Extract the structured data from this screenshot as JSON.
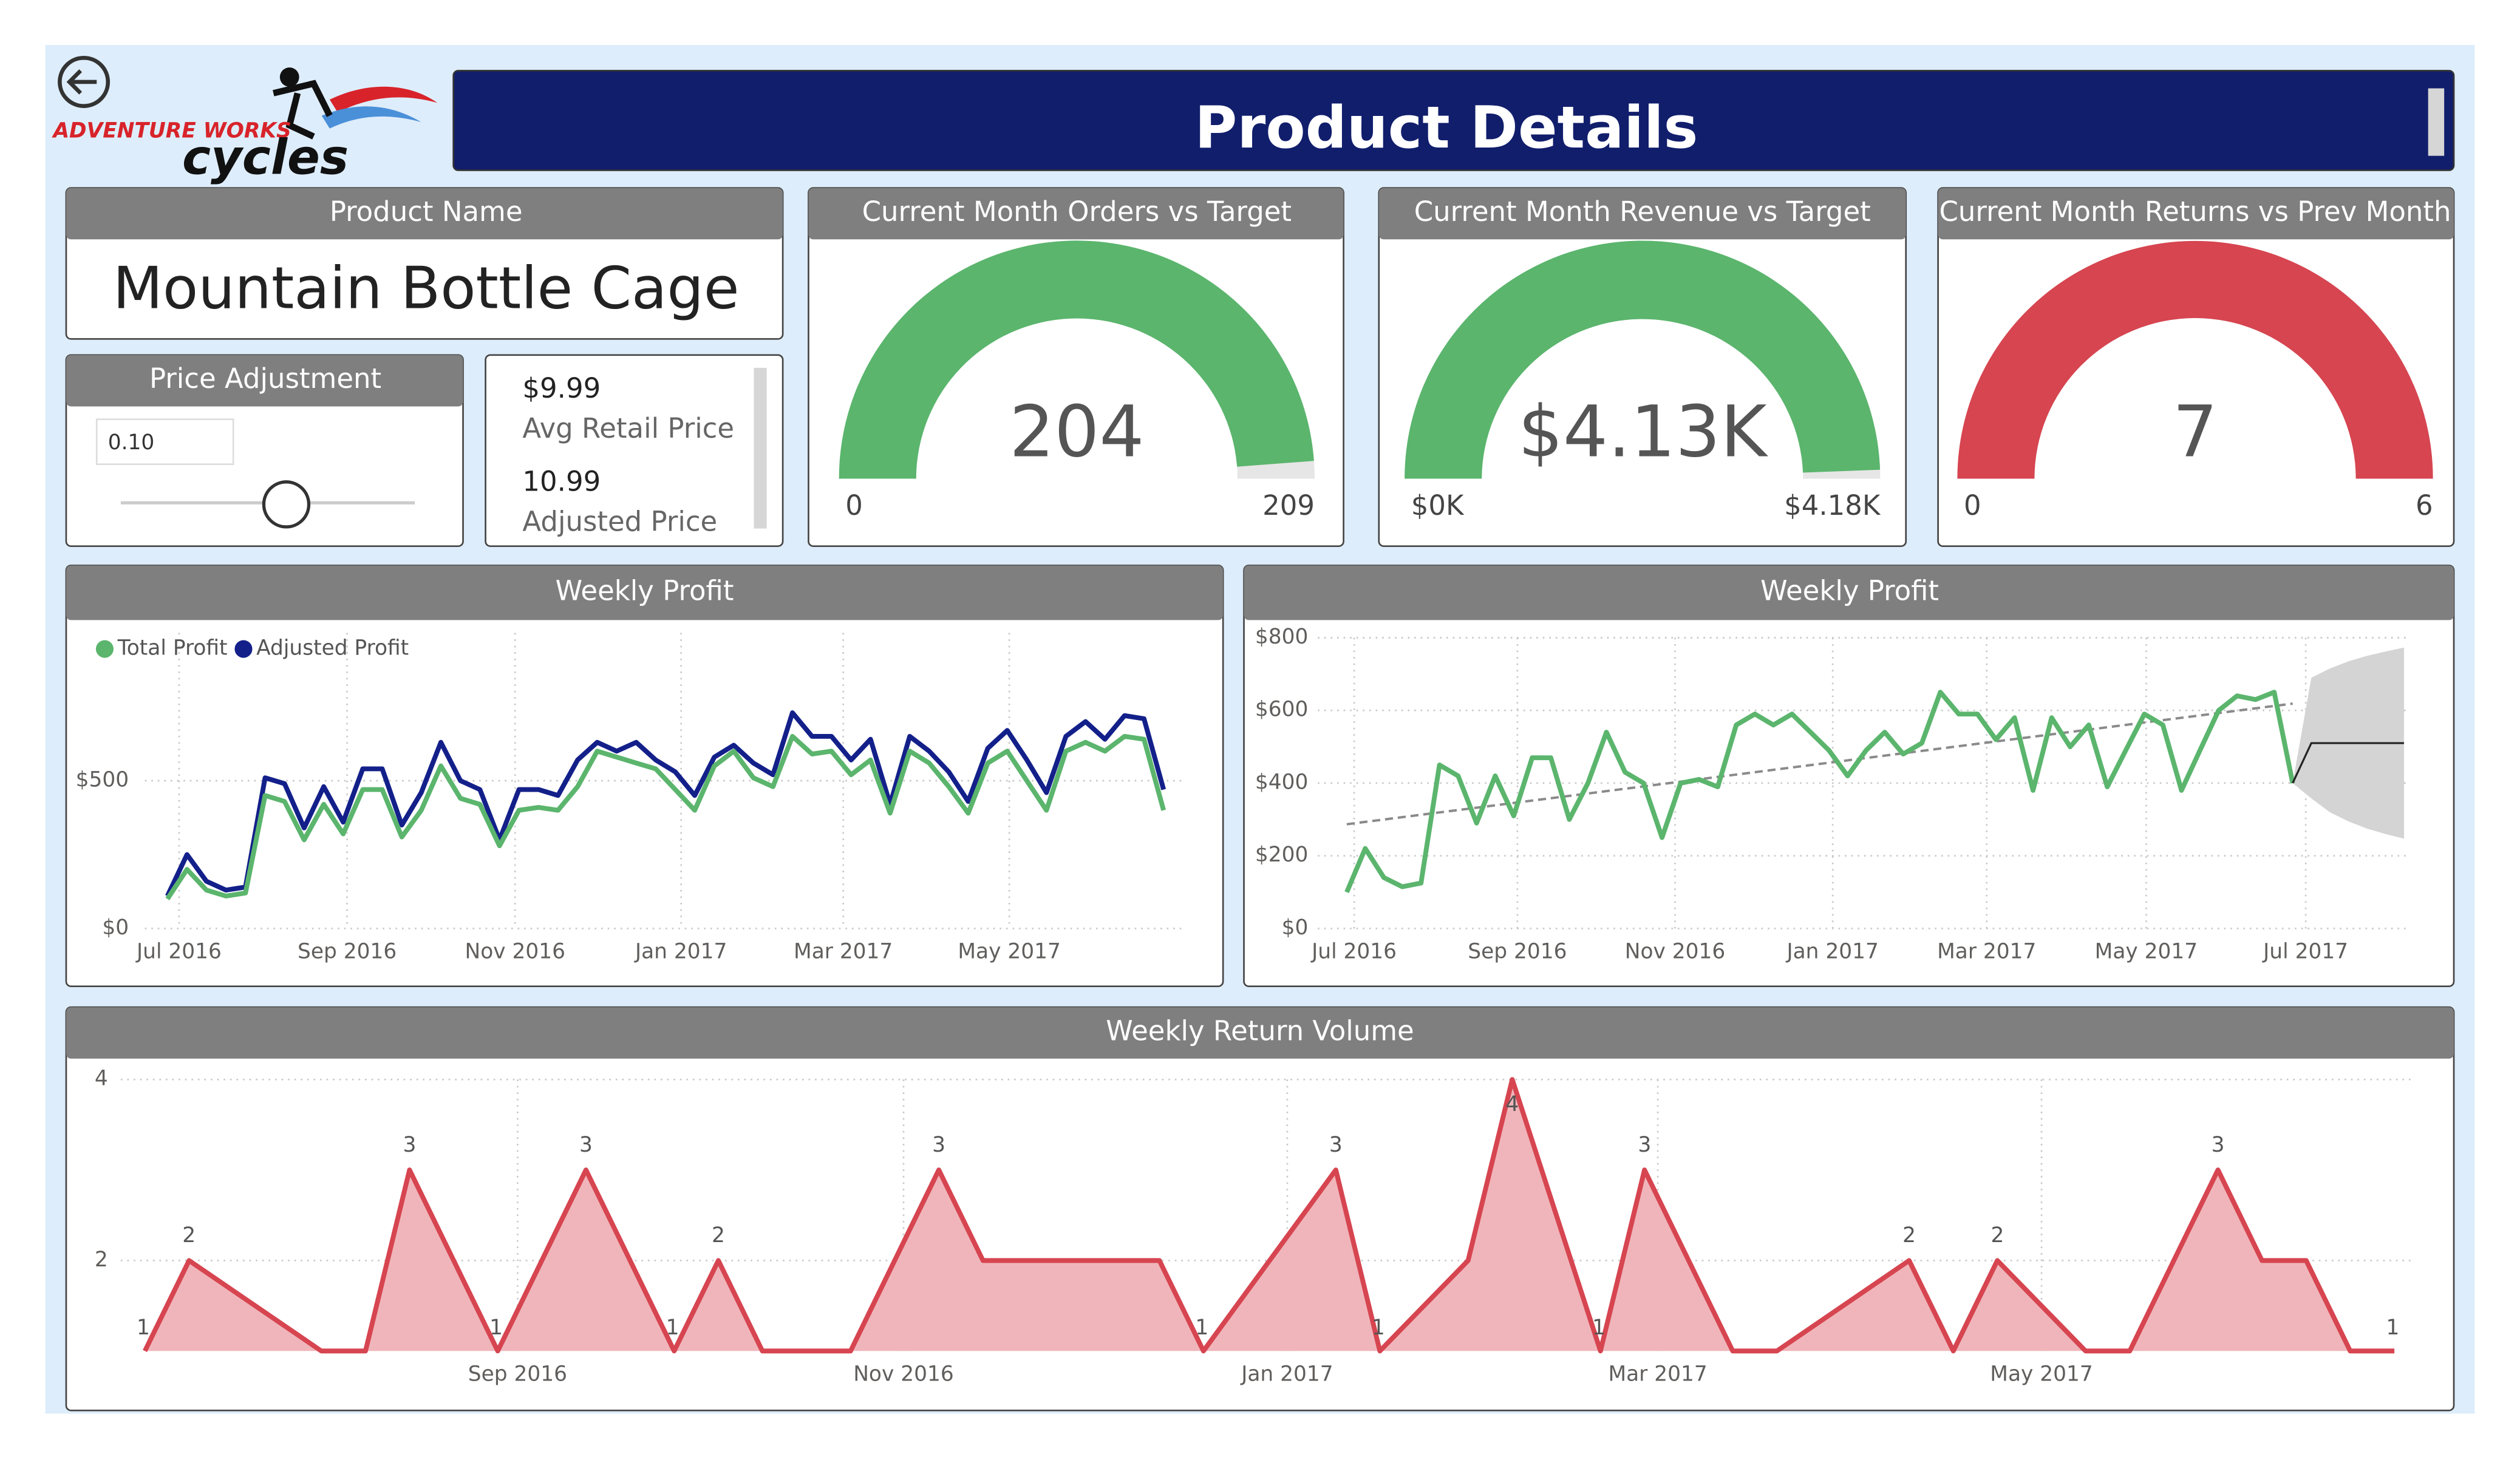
{
  "header": {
    "title": "Product Details"
  },
  "logo": {
    "brand": "ADVENTURE WORKS",
    "name": "cycles"
  },
  "product": {
    "label": "Product Name",
    "value": "Mountain Bottle Cage"
  },
  "price_adjustment": {
    "label": "Price Adjustment",
    "value": "0.10"
  },
  "prices": [
    {
      "value": "$9.99",
      "label": "Avg Retail Price"
    },
    {
      "value": "10.99",
      "label": "Adjusted Price"
    }
  ],
  "chart_data": [
    {
      "type": "gauge",
      "title": "Current Month Orders vs Target",
      "values": [
        204
      ],
      "ylim": [
        0,
        209
      ],
      "yticks": [
        0,
        209
      ],
      "color": "#5bb56d"
    },
    {
      "type": "gauge",
      "title": "Current Month Revenue vs Target",
      "values": [
        4130
      ],
      "value_labels": [
        "$4.13K"
      ],
      "ylim": [
        0,
        4180
      ],
      "yticks": [
        {
          "value": 0,
          "label": "$0K"
        },
        {
          "value": 4180,
          "label": "$4.18K"
        }
      ],
      "color": "#5bb56d"
    },
    {
      "type": "gauge",
      "title": "Current Month Returns vs Prev Month",
      "values": [
        7
      ],
      "ylim": [
        0,
        6
      ],
      "yticks": [
        0,
        6
      ],
      "color": "#d64550"
    },
    {
      "type": "line",
      "title": "Weekly Profit",
      "series": [
        {
          "name": "Total Profit",
          "color": "#5bb56d",
          "values": [
            100,
            200,
            130,
            110,
            120,
            450,
            430,
            300,
            420,
            320,
            470,
            470,
            310,
            400,
            550,
            440,
            420,
            280,
            400,
            410,
            400,
            480,
            600,
            580,
            560,
            540,
            470,
            400,
            550,
            600,
            510,
            480,
            650,
            590,
            600,
            520,
            570,
            390,
            600,
            560,
            480,
            390,
            560,
            600,
            500,
            400,
            600,
            630,
            600,
            650,
            640,
            400
          ]
        },
        {
          "name": "Adjusted Profit",
          "color": "#13208a",
          "values": [
            110,
            250,
            160,
            130,
            140,
            510,
            490,
            340,
            480,
            360,
            540,
            540,
            350,
            460,
            630,
            500,
            470,
            300,
            470,
            470,
            450,
            570,
            630,
            600,
            630,
            570,
            530,
            450,
            580,
            620,
            560,
            520,
            730,
            650,
            650,
            570,
            640,
            420,
            650,
            600,
            530,
            430,
            610,
            670,
            570,
            460,
            650,
            700,
            640,
            720,
            710,
            470
          ]
        }
      ],
      "ylim": [
        0,
        1000
      ],
      "yticks": [
        {
          "value": 0,
          "label": "$0"
        },
        {
          "value": 500,
          "label": "$500"
        }
      ],
      "xlim": [
        0,
        51
      ],
      "xticks": [
        {
          "value": 0.6,
          "label": "Jul 2016"
        },
        {
          "value": 9.2,
          "label": "Sep 2016"
        },
        {
          "value": 17.8,
          "label": "Nov 2016"
        },
        {
          "value": 26.3,
          "label": "Jan 2017"
        },
        {
          "value": 34.6,
          "label": "Mar 2017"
        },
        {
          "value": 43.1,
          "label": "May 2017"
        }
      ],
      "legend": "top-left",
      "grid": true
    },
    {
      "type": "line",
      "title": "Weekly Profit",
      "series": [
        {
          "color": "#5bb56d",
          "values": [
            100,
            220,
            140,
            115,
            125,
            450,
            420,
            290,
            420,
            310,
            470,
            470,
            300,
            400,
            540,
            430,
            400,
            250,
            400,
            410,
            390,
            560,
            590,
            560,
            590,
            540,
            490,
            420,
            490,
            540,
            480,
            510,
            650,
            590,
            590,
            520,
            580,
            380,
            580,
            500,
            560,
            390,
            490,
            590,
            560,
            380,
            490,
            600,
            640,
            630,
            650,
            400
          ]
        }
      ],
      "trend": {
        "x": [
          0,
          51
        ],
        "values": [
          287,
          619
        ],
        "color": "#8a8a8a"
      },
      "forecast": {
        "x": [
          51,
          52,
          53,
          54,
          55,
          56,
          57
        ],
        "values": [
          400,
          510,
          510,
          510,
          510,
          510,
          510
        ],
        "upper": [
          400,
          690,
          715,
          735,
          750,
          762,
          773
        ],
        "lower": [
          400,
          358,
          320,
          295,
          275,
          260,
          247
        ],
        "color": "#222222",
        "band_color": "#d4d4d4"
      },
      "ylim": [
        0,
        800
      ],
      "yticks": [
        {
          "value": 0,
          "label": "$0"
        },
        {
          "value": 200,
          "label": "$200"
        },
        {
          "value": 400,
          "label": "$400"
        },
        {
          "value": 600,
          "label": "$600"
        },
        {
          "value": 800,
          "label": "$800"
        }
      ],
      "xlim": [
        0,
        57
      ],
      "xticks": [
        {
          "value": 0.4,
          "label": "Jul 2016"
        },
        {
          "value": 9.2,
          "label": "Sep 2016"
        },
        {
          "value": 17.7,
          "label": "Nov 2016"
        },
        {
          "value": 26.2,
          "label": "Jan 2017"
        },
        {
          "value": 34.5,
          "label": "Mar 2017"
        },
        {
          "value": 43.1,
          "label": "May 2017"
        },
        {
          "value": 51.7,
          "label": "Jul 2017"
        }
      ],
      "grid": true
    },
    {
      "type": "area",
      "title": "Weekly Return Volume",
      "x": [
        0,
        1,
        4,
        5,
        6,
        8,
        10,
        12,
        13,
        14,
        16,
        18,
        19,
        23,
        24,
        27,
        28,
        30,
        31,
        33,
        34,
        36,
        37,
        40,
        41,
        42,
        44,
        45,
        47,
        48,
        49,
        50,
        51
      ],
      "values": [
        1,
        2,
        1,
        1,
        3,
        1,
        3,
        1,
        2,
        1,
        1,
        3,
        2,
        2,
        1,
        3,
        1,
        2,
        4,
        1,
        3,
        1,
        1,
        2,
        1,
        2,
        1,
        1,
        3,
        2,
        2,
        1,
        1
      ],
      "value_labels": [
        "1",
        "2",
        null,
        null,
        "3",
        "1",
        "3",
        "1",
        "2",
        null,
        null,
        "3",
        null,
        null,
        "1",
        "3",
        "1",
        null,
        "4",
        "1",
        "3",
        null,
        null,
        "2",
        null,
        "2",
        null,
        null,
        "3",
        null,
        null,
        null,
        "1"
      ],
      "ylim": [
        1,
        4
      ],
      "yticks": [
        2,
        4
      ],
      "xlim": [
        0,
        51
      ],
      "xticks": [
        {
          "value": 8.45,
          "label": "Sep 2016"
        },
        {
          "value": 17.2,
          "label": "Nov 2016"
        },
        {
          "value": 25.9,
          "label": "Jan 2017"
        },
        {
          "value": 34.3,
          "label": "Mar 2017"
        },
        {
          "value": 43.0,
          "label": "May 2017"
        }
      ],
      "color": "#d64550",
      "fill": "#f0b5ba",
      "grid": true
    }
  ]
}
